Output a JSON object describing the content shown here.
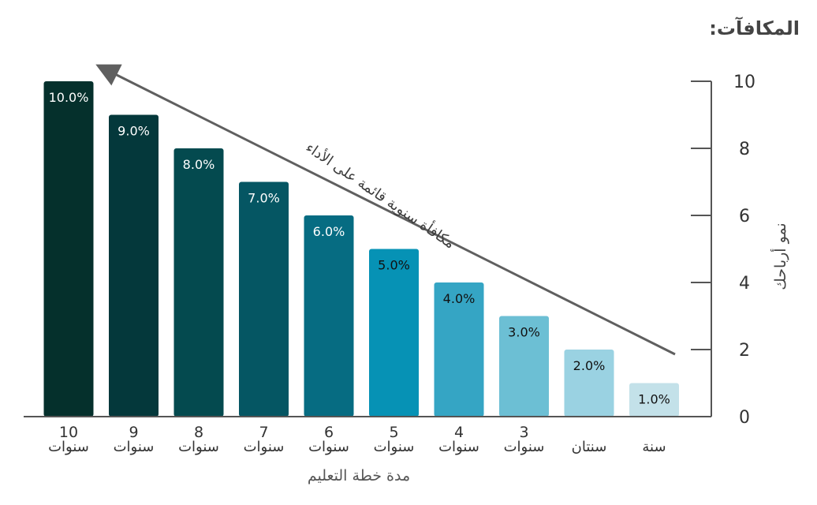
{
  "title": "المكافآت:",
  "chart_data": {
    "type": "bar",
    "title": "المكافآت:",
    "ylabel": "نمو أرباحك",
    "xlabel": "مدة خطة التعليم",
    "ylim": [
      0,
      10
    ],
    "yticks": [
      "0",
      "2",
      "4",
      "6",
      "8",
      "10"
    ],
    "annotation": "مكافأة سنوية قائمة على الأداء",
    "categories": [
      {
        "line1": "10",
        "line2": "سنوات"
      },
      {
        "line1": "9",
        "line2": "سنوات"
      },
      {
        "line1": "8",
        "line2": "سنوات"
      },
      {
        "line1": "7",
        "line2": "سنوات"
      },
      {
        "line1": "6",
        "line2": "سنوات"
      },
      {
        "line1": "5",
        "line2": "سنوات"
      },
      {
        "line1": "4",
        "line2": "سنوات"
      },
      {
        "line1": "3",
        "line2": "سنوات"
      },
      {
        "line1": "",
        "line2": "سنتان"
      },
      {
        "line1": "",
        "line2": "سنة"
      }
    ],
    "values": [
      10,
      9,
      8,
      7,
      6,
      5,
      4,
      3,
      2,
      1
    ],
    "data_labels": [
      "10.0%",
      "9.0%",
      "8.0%",
      "7.0%",
      "6.0%",
      "5.0%",
      "4.0%",
      "3.0%",
      "2.0%",
      "1.0%"
    ],
    "colors": [
      "#05302c",
      "#04383b",
      "#044a4f",
      "#055663",
      "#066c82",
      "#0692b5",
      "#35a5c4",
      "#6cbfd4",
      "#9ad2e2",
      "#c3e1e9"
    ],
    "label_colors": [
      "#ffffff",
      "#ffffff",
      "#ffffff",
      "#ffffff",
      "#ffffff",
      "#111111",
      "#111111",
      "#111111",
      "#111111",
      "#111111"
    ],
    "axis_color": "#555555",
    "arrow_color": "#5f5f5f"
  }
}
